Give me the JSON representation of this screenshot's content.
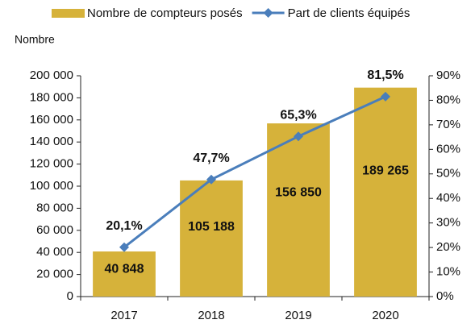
{
  "chart_data": {
    "type": "bar",
    "y_axis_label": "Nombre",
    "categories": [
      "2017",
      "2018",
      "2019",
      "2020"
    ],
    "series": [
      {
        "name": "Nombre de compteurs posés",
        "type": "bar",
        "axis": "y",
        "color": "#d6b23a",
        "values": [
          40848,
          105188,
          156850,
          189265
        ],
        "value_labels": [
          "40 848",
          "105 188",
          "156 850",
          "189 265"
        ]
      },
      {
        "name": "Part de clients équipés",
        "type": "line",
        "axis": "y2",
        "color": "#4a7ebb",
        "values": [
          20.1,
          47.7,
          65.3,
          81.5
        ],
        "value_labels": [
          "20,1%",
          "47,7%",
          "65,3%",
          "81,5%"
        ]
      }
    ],
    "ylim": [
      0,
      200000
    ],
    "yticks": [
      0,
      {
        "value": 20000,
        "label": "20 000"
      },
      {
        "value": 40000,
        "label": "40 000"
      },
      {
        "value": 60000,
        "label": "60 000"
      },
      {
        "value": 80000,
        "label": "80 000"
      },
      {
        "value": 100000,
        "label": "100 000"
      },
      {
        "value": 120000,
        "label": "120 000"
      },
      {
        "value": 140000,
        "label": "140 000"
      },
      {
        "value": 160000,
        "label": "160 000"
      },
      {
        "value": 180000,
        "label": "180 000"
      },
      {
        "value": 200000,
        "label": "200 000"
      }
    ],
    "y2lim": [
      0,
      90
    ],
    "y2ticks": [
      {
        "value": 0,
        "label": "0%"
      },
      {
        "value": 10,
        "label": "10%"
      },
      {
        "value": 20,
        "label": "20%"
      },
      {
        "value": 30,
        "label": "30%"
      },
      {
        "value": 40,
        "label": "40%"
      },
      {
        "value": 50,
        "label": "50%"
      },
      {
        "value": 60,
        "label": "60%"
      },
      {
        "value": 70,
        "label": "70%"
      },
      {
        "value": 80,
        "label": "80%"
      },
      {
        "value": 90,
        "label": "90%"
      }
    ],
    "grid": false,
    "legend": "top"
  }
}
